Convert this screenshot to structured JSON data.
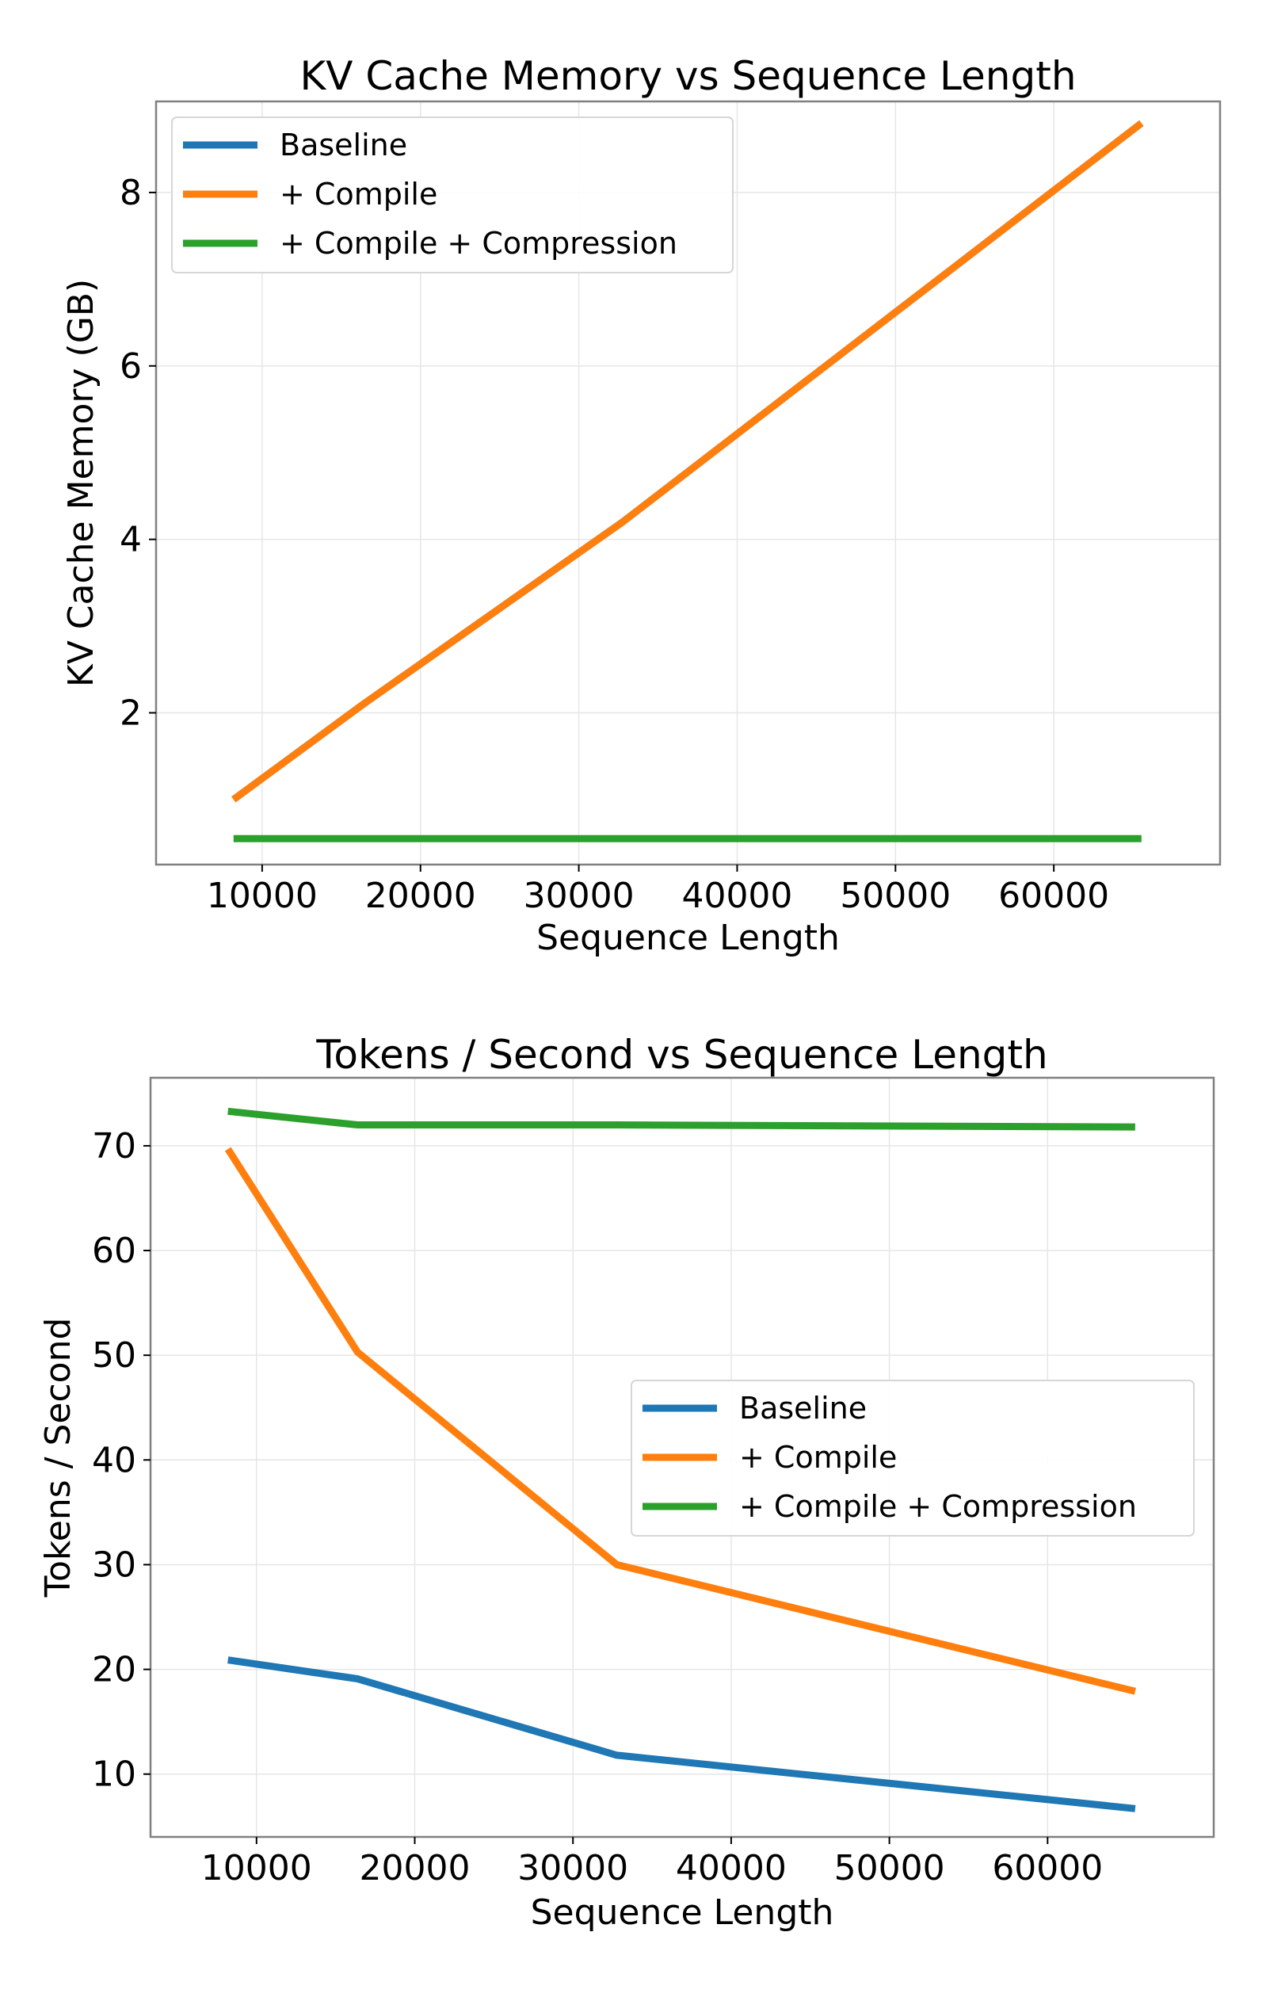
{
  "chart_data": [
    {
      "type": "line",
      "title": "KV Cache Memory vs Sequence Length",
      "xlabel": "Sequence Length",
      "ylabel": "KV Cache Memory (GB)",
      "xlim": [
        3300,
        70500
      ],
      "ylim": [
        0.25,
        9.05
      ],
      "xticks": [
        10000,
        20000,
        30000,
        40000,
        50000,
        60000
      ],
      "yticks": [
        2,
        4,
        6,
        8
      ],
      "grid": true,
      "legend_position": "top-left",
      "x": [
        8192,
        16384,
        32768,
        65536
      ],
      "series": [
        {
          "name": "Baseline",
          "color": "#1f77b4",
          "values": [
            1.0,
            2.1,
            4.2,
            8.8
          ]
        },
        {
          "name": "+ Compile",
          "color": "#ff7f0e",
          "values": [
            1.0,
            2.1,
            4.2,
            8.8
          ]
        },
        {
          "name": "+ Compile + Compression",
          "color": "#2ca02c",
          "values": [
            0.55,
            0.55,
            0.55,
            0.55
          ]
        }
      ]
    },
    {
      "type": "line",
      "title": "Tokens / Second vs Sequence Length",
      "xlabel": "Sequence Length",
      "ylabel": "Tokens / Second",
      "xlim": [
        3300,
        70500
      ],
      "ylim": [
        4.0,
        76.5
      ],
      "xticks": [
        10000,
        20000,
        30000,
        40000,
        50000,
        60000
      ],
      "yticks": [
        10,
        20,
        30,
        40,
        50,
        60,
        70
      ],
      "grid": true,
      "legend_position": "center-right",
      "x": [
        8192,
        16384,
        32768,
        65536
      ],
      "series": [
        {
          "name": "Baseline",
          "color": "#1f77b4",
          "values": [
            20.9,
            19.1,
            11.8,
            6.7
          ]
        },
        {
          "name": "+ Compile",
          "color": "#ff7f0e",
          "values": [
            69.7,
            50.3,
            30.0,
            17.9
          ]
        },
        {
          "name": "+ Compile + Compression",
          "color": "#2ca02c",
          "values": [
            73.3,
            72.0,
            72.0,
            71.8
          ]
        }
      ]
    }
  ]
}
